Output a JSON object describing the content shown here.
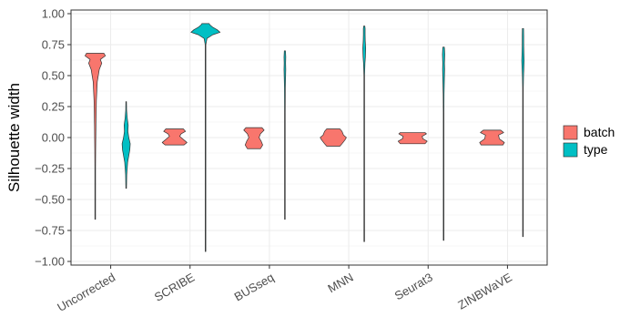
{
  "chart_data": {
    "type": "violin",
    "title": "",
    "xlabel": "",
    "ylabel": "Silhouette width",
    "ylim": [
      -1.0,
      1.0
    ],
    "yticks": [
      1.0,
      0.75,
      0.5,
      0.25,
      0.0,
      -0.25,
      -0.5,
      -0.75,
      -1.0
    ],
    "ytick_labels": [
      "1.00",
      "0.75",
      "0.50",
      "0.25",
      "0.00",
      "−0.25",
      "−0.50",
      "−0.75",
      "−1.00"
    ],
    "categories": [
      "Uncorrected",
      "SCRIBE",
      "BUSseq",
      "MNN",
      "Seurat3",
      "ZINBWaVE"
    ],
    "grid": true,
    "legend_position": "right",
    "series": [
      {
        "name": "batch",
        "color": "#F8766D",
        "violins": [
          {
            "min": -0.66,
            "max": 0.68,
            "profile": [
              [
                -0.66,
                0.01
              ],
              [
                -0.25,
                0.02
              ],
              [
                -0.1,
                0.03
              ],
              [
                0.1,
                0.05
              ],
              [
                0.3,
                0.08
              ],
              [
                0.45,
                0.14
              ],
              [
                0.55,
                0.28
              ],
              [
                0.6,
                0.45
              ],
              [
                0.63,
                0.35
              ],
              [
                0.66,
                0.7
              ],
              [
                0.68,
                0.6
              ]
            ]
          },
          {
            "min": -0.06,
            "max": 0.07,
            "profile": [
              [
                -0.06,
                0.65
              ],
              [
                -0.04,
                0.85
              ],
              [
                -0.01,
                0.55
              ],
              [
                0.01,
                0.35
              ],
              [
                0.03,
                0.45
              ],
              [
                0.05,
                0.75
              ],
              [
                0.07,
                0.6
              ]
            ]
          },
          {
            "min": -0.09,
            "max": 0.08,
            "profile": [
              [
                -0.09,
                0.45
              ],
              [
                -0.06,
                0.6
              ],
              [
                -0.03,
                0.5
              ],
              [
                0.0,
                0.35
              ],
              [
                0.03,
                0.45
              ],
              [
                0.06,
                0.7
              ],
              [
                0.08,
                0.55
              ]
            ]
          },
          {
            "min": -0.07,
            "max": 0.07,
            "profile": [
              [
                -0.07,
                0.45
              ],
              [
                -0.05,
                0.6
              ],
              [
                -0.02,
                0.8
              ],
              [
                0.0,
                0.9
              ],
              [
                0.02,
                0.7
              ],
              [
                0.05,
                0.6
              ],
              [
                0.07,
                0.45
              ]
            ]
          },
          {
            "min": -0.05,
            "max": 0.04,
            "profile": [
              [
                -0.05,
                0.85
              ],
              [
                -0.03,
                1.0
              ],
              [
                -0.01,
                0.7
              ],
              [
                0.01,
                0.65
              ],
              [
                0.03,
                0.95
              ],
              [
                0.04,
                0.85
              ]
            ]
          },
          {
            "min": -0.06,
            "max": 0.06,
            "profile": [
              [
                -0.06,
                0.75
              ],
              [
                -0.04,
                0.85
              ],
              [
                -0.01,
                0.5
              ],
              [
                0.02,
                0.45
              ],
              [
                0.04,
                0.8
              ],
              [
                0.06,
                0.6
              ]
            ]
          }
        ]
      },
      {
        "name": "type",
        "color": "#00BFC4",
        "violins": [
          {
            "min": -0.41,
            "max": 0.29,
            "profile": [
              [
                -0.41,
                0.01
              ],
              [
                -0.3,
                0.04
              ],
              [
                -0.2,
                0.1
              ],
              [
                -0.1,
                0.25
              ],
              [
                -0.05,
                0.28
              ],
              [
                0.0,
                0.18
              ],
              [
                0.05,
                0.12
              ],
              [
                0.1,
                0.14
              ],
              [
                0.15,
                0.08
              ],
              [
                0.22,
                0.03
              ],
              [
                0.29,
                0.01
              ]
            ]
          },
          {
            "min": -0.92,
            "max": 0.92,
            "profile": [
              [
                -0.92,
                0.01
              ],
              [
                0.0,
                0.01
              ],
              [
                0.5,
                0.01
              ],
              [
                0.75,
                0.02
              ],
              [
                0.8,
                0.1
              ],
              [
                0.83,
                0.5
              ],
              [
                0.85,
                1.0
              ],
              [
                0.87,
                0.8
              ],
              [
                0.89,
                0.5
              ],
              [
                0.91,
                0.3
              ],
              [
                0.92,
                0.25
              ]
            ]
          },
          {
            "min": -0.66,
            "max": 0.7,
            "profile": [
              [
                -0.66,
                0.01
              ],
              [
                0.0,
                0.01
              ],
              [
                0.2,
                0.015
              ],
              [
                0.4,
                0.03
              ],
              [
                0.5,
                0.05
              ],
              [
                0.55,
                0.06
              ],
              [
                0.6,
                0.05
              ],
              [
                0.65,
                0.06
              ],
              [
                0.7,
                0.04
              ]
            ]
          },
          {
            "min": -0.84,
            "max": 0.9,
            "profile": [
              [
                -0.84,
                0.01
              ],
              [
                -0.5,
                0.01
              ],
              [
                0.0,
                0.01
              ],
              [
                0.5,
                0.02
              ],
              [
                0.6,
                0.05
              ],
              [
                0.65,
                0.08
              ],
              [
                0.72,
                0.1
              ],
              [
                0.78,
                0.07
              ],
              [
                0.83,
                0.06
              ],
              [
                0.88,
                0.06
              ],
              [
                0.9,
                0.04
              ]
            ]
          },
          {
            "min": -0.83,
            "max": 0.73,
            "profile": [
              [
                -0.83,
                0.01
              ],
              [
                -0.3,
                0.01
              ],
              [
                0.2,
                0.02
              ],
              [
                0.35,
                0.03
              ],
              [
                0.45,
                0.05
              ],
              [
                0.55,
                0.07
              ],
              [
                0.6,
                0.06
              ],
              [
                0.67,
                0.08
              ],
              [
                0.72,
                0.06
              ],
              [
                0.73,
                0.05
              ]
            ]
          },
          {
            "min": -0.8,
            "max": 0.88,
            "profile": [
              [
                -0.8,
                0.01
              ],
              [
                0.0,
                0.01
              ],
              [
                0.4,
                0.02
              ],
              [
                0.5,
                0.04
              ],
              [
                0.55,
                0.06
              ],
              [
                0.62,
                0.08
              ],
              [
                0.7,
                0.06
              ],
              [
                0.75,
                0.05
              ],
              [
                0.82,
                0.05
              ],
              [
                0.88,
                0.04
              ]
            ]
          }
        ]
      }
    ]
  }
}
